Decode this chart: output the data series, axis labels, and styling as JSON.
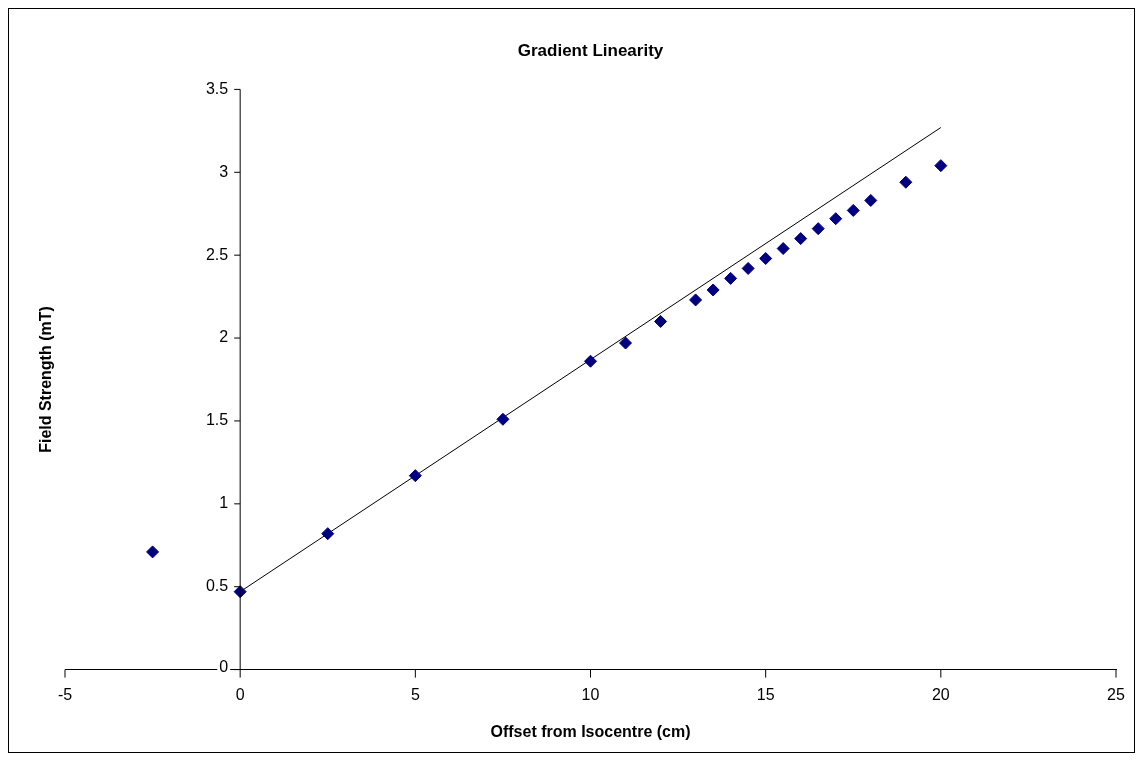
{
  "chart_data": {
    "type": "scatter",
    "title": "Gradient Linearity",
    "xlabel": "Offset from Isocentre (cm)",
    "ylabel": "Field Strength (mT)",
    "xlim": [
      -5,
      25
    ],
    "xticks": [
      -5,
      0,
      5,
      10,
      15,
      20,
      25
    ],
    "ylim": [
      0,
      3.5
    ],
    "yticks": [
      0,
      0.5,
      1,
      1.5,
      2,
      2.5,
      3,
      3.5
    ],
    "grid": false,
    "legend": false,
    "series": [
      {
        "color": "#000080",
        "marker": "diamond",
        "x": [
          -2.5,
          0,
          2.5,
          5,
          7.5,
          10,
          11,
          12,
          13,
          13.5,
          14,
          14.5,
          15,
          15.5,
          16,
          16.5,
          17,
          17.5,
          18,
          19,
          20
        ],
        "values": [
          0.71,
          0.47,
          0.82,
          1.17,
          1.51,
          1.86,
          1.97,
          2.1,
          2.23,
          2.29,
          2.36,
          2.42,
          2.48,
          2.54,
          2.6,
          2.66,
          2.72,
          2.77,
          2.83,
          2.94,
          3.04
        ]
      },
      {
        "type": "line",
        "color": "#000000",
        "marker": "none",
        "x": [
          0,
          20
        ],
        "values": [
          0.47,
          3.27
        ]
      }
    ]
  }
}
